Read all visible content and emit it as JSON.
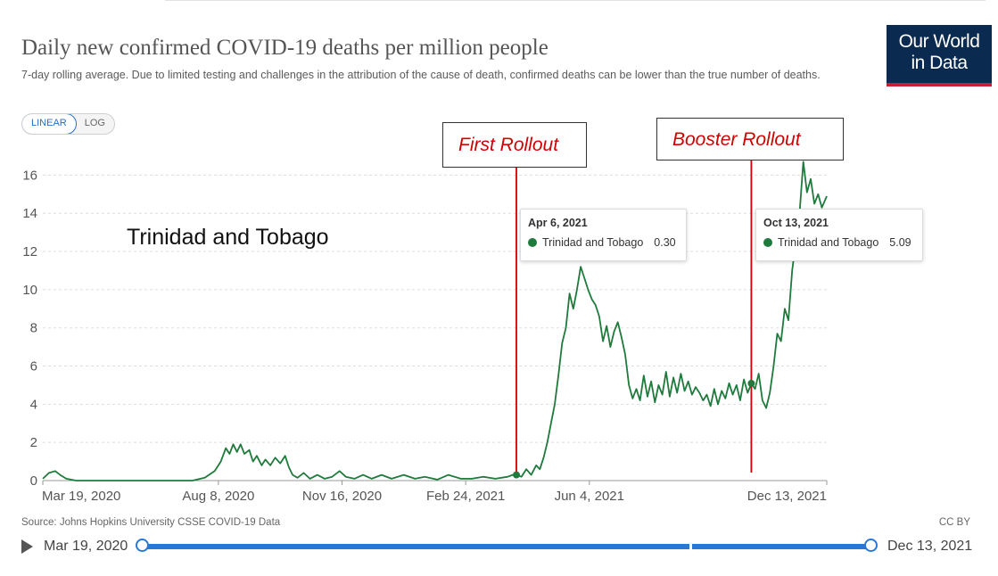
{
  "title": "Daily new confirmed COVID-19 deaths per million people",
  "subtitle": "7-day rolling average. Due to limited testing and challenges in the attribution of the cause of death, confirmed deaths can be lower than the true number of deaths.",
  "logo": {
    "line1": "Our World",
    "line2": "in Data"
  },
  "scale_toggle": {
    "linear": "LINEAR",
    "log": "LOG",
    "active": "LINEAR"
  },
  "annotations": {
    "first": "First Rollout",
    "booster": "Booster Rollout",
    "country": "Trinidad and Tobago"
  },
  "tooltips": [
    {
      "date": "Apr 6, 2021",
      "series": "Trinidad and Tobago",
      "value": "0.30"
    },
    {
      "date": "Oct 13, 2021",
      "series": "Trinidad and Tobago",
      "value": "5.09"
    }
  ],
  "source": "Source: Johns Hopkins University CSSE COVID-19 Data",
  "license": "CC BY",
  "timeline": {
    "start": "Mar 19, 2020",
    "end": "Dec 13, 2021"
  },
  "colors": {
    "series": "#1f7a3c",
    "marker": "#d00000",
    "accent": "#2a78d4"
  },
  "chart_data": {
    "type": "line",
    "title": "Daily new confirmed COVID-19 deaths per million people",
    "xlabel": "",
    "ylabel": "",
    "xlim": [
      "2020-03-19",
      "2021-12-13"
    ],
    "ylim": [
      0,
      17
    ],
    "yticks": [
      0,
      2,
      4,
      6,
      8,
      10,
      12,
      14,
      16
    ],
    "xticks": [
      "Mar 19, 2020",
      "Aug 8, 2020",
      "Nov 16, 2020",
      "Feb 24, 2021",
      "Jun 4, 2021",
      "Dec 13, 2021"
    ],
    "grid": "horizontal",
    "series": [
      {
        "name": "Trinidad and Tobago",
        "points": [
          [
            "2020-03-19",
            0.1
          ],
          [
            "2020-03-24",
            0.4
          ],
          [
            "2020-03-29",
            0.5
          ],
          [
            "2020-04-02",
            0.3
          ],
          [
            "2020-04-07",
            0.1
          ],
          [
            "2020-04-15",
            0
          ],
          [
            "2020-05-15",
            0
          ],
          [
            "2020-06-20",
            0
          ],
          [
            "2020-07-18",
            0
          ],
          [
            "2020-07-28",
            0.15
          ],
          [
            "2020-08-05",
            0.5
          ],
          [
            "2020-08-10",
            1.0
          ],
          [
            "2020-08-14",
            1.7
          ],
          [
            "2020-08-17",
            1.4
          ],
          [
            "2020-08-20",
            1.9
          ],
          [
            "2020-08-23",
            1.5
          ],
          [
            "2020-08-26",
            1.9
          ],
          [
            "2020-08-29",
            1.4
          ],
          [
            "2020-09-02",
            1.6
          ],
          [
            "2020-09-05",
            1.0
          ],
          [
            "2020-09-08",
            1.3
          ],
          [
            "2020-09-12",
            0.8
          ],
          [
            "2020-09-15",
            1.1
          ],
          [
            "2020-09-19",
            0.8
          ],
          [
            "2020-09-23",
            1.2
          ],
          [
            "2020-09-27",
            0.9
          ],
          [
            "2020-10-01",
            1.3
          ],
          [
            "2020-10-04",
            0.7
          ],
          [
            "2020-10-07",
            0.3
          ],
          [
            "2020-10-11",
            0.15
          ],
          [
            "2020-10-16",
            0.4
          ],
          [
            "2020-10-21",
            0.1
          ],
          [
            "2020-10-27",
            0.3
          ],
          [
            "2020-11-02",
            0.1
          ],
          [
            "2020-11-08",
            0.2
          ],
          [
            "2020-11-14",
            0.5
          ],
          [
            "2020-11-19",
            0.2
          ],
          [
            "2020-11-26",
            0.1
          ],
          [
            "2020-12-03",
            0.3
          ],
          [
            "2020-12-10",
            0.1
          ],
          [
            "2020-12-18",
            0.3
          ],
          [
            "2020-12-26",
            0.1
          ],
          [
            "2021-01-05",
            0.3
          ],
          [
            "2021-01-14",
            0.1
          ],
          [
            "2021-01-22",
            0.2
          ],
          [
            "2021-02-01",
            0.05
          ],
          [
            "2021-02-10",
            0.3
          ],
          [
            "2021-02-20",
            0.1
          ],
          [
            "2021-03-01",
            0.1
          ],
          [
            "2021-03-10",
            0.2
          ],
          [
            "2021-03-20",
            0.1
          ],
          [
            "2021-03-30",
            0.2
          ],
          [
            "2021-04-03",
            0.3
          ],
          [
            "2021-04-06",
            0.3
          ],
          [
            "2021-04-10",
            0.2
          ],
          [
            "2021-04-14",
            0.6
          ],
          [
            "2021-04-18",
            0.3
          ],
          [
            "2021-04-22",
            0.8
          ],
          [
            "2021-04-25",
            0.6
          ],
          [
            "2021-04-28",
            1.2
          ],
          [
            "2021-05-01",
            2.0
          ],
          [
            "2021-05-04",
            3.0
          ],
          [
            "2021-05-07",
            4.0
          ],
          [
            "2021-05-10",
            5.5
          ],
          [
            "2021-05-13",
            7.2
          ],
          [
            "2021-05-16",
            8.0
          ],
          [
            "2021-05-19",
            9.8
          ],
          [
            "2021-05-22",
            9.0
          ],
          [
            "2021-05-25",
            10.0
          ],
          [
            "2021-05-28",
            11.2
          ],
          [
            "2021-05-31",
            10.6
          ],
          [
            "2021-06-03",
            10.0
          ],
          [
            "2021-06-06",
            9.5
          ],
          [
            "2021-06-09",
            9.2
          ],
          [
            "2021-06-12",
            8.6
          ],
          [
            "2021-06-15",
            7.3
          ],
          [
            "2021-06-18",
            8.1
          ],
          [
            "2021-06-21",
            7.0
          ],
          [
            "2021-06-24",
            7.8
          ],
          [
            "2021-06-27",
            8.3
          ],
          [
            "2021-06-30",
            7.5
          ],
          [
            "2021-07-03",
            6.6
          ],
          [
            "2021-07-06",
            5.0
          ],
          [
            "2021-07-09",
            4.3
          ],
          [
            "2021-07-12",
            4.8
          ],
          [
            "2021-07-15",
            4.2
          ],
          [
            "2021-07-18",
            5.5
          ],
          [
            "2021-07-21",
            4.4
          ],
          [
            "2021-07-24",
            5.2
          ],
          [
            "2021-07-27",
            4.1
          ],
          [
            "2021-07-30",
            5.0
          ],
          [
            "2021-08-02",
            4.5
          ],
          [
            "2021-08-05",
            5.7
          ],
          [
            "2021-08-08",
            4.4
          ],
          [
            "2021-08-11",
            5.4
          ],
          [
            "2021-08-14",
            4.6
          ],
          [
            "2021-08-17",
            5.6
          ],
          [
            "2021-08-20",
            4.7
          ],
          [
            "2021-08-23",
            5.2
          ],
          [
            "2021-08-26",
            4.5
          ],
          [
            "2021-08-29",
            4.9
          ],
          [
            "2021-09-01",
            4.6
          ],
          [
            "2021-09-04",
            4.2
          ],
          [
            "2021-09-07",
            4.5
          ],
          [
            "2021-09-10",
            3.9
          ],
          [
            "2021-09-13",
            4.8
          ],
          [
            "2021-09-16",
            4.0
          ],
          [
            "2021-09-19",
            4.7
          ],
          [
            "2021-09-22",
            4.3
          ],
          [
            "2021-09-25",
            5.1
          ],
          [
            "2021-09-28",
            4.5
          ],
          [
            "2021-10-01",
            5.0
          ],
          [
            "2021-10-04",
            4.2
          ],
          [
            "2021-10-07",
            5.3
          ],
          [
            "2021-10-10",
            4.6
          ],
          [
            "2021-10-13",
            5.09
          ],
          [
            "2021-10-16",
            4.8
          ],
          [
            "2021-10-19",
            5.6
          ],
          [
            "2021-10-22",
            4.2
          ],
          [
            "2021-10-25",
            3.8
          ],
          [
            "2021-10-28",
            4.6
          ],
          [
            "2021-10-31",
            6.0
          ],
          [
            "2021-11-03",
            7.7
          ],
          [
            "2021-11-06",
            7.3
          ],
          [
            "2021-11-09",
            9.0
          ],
          [
            "2021-11-12",
            8.4
          ],
          [
            "2021-11-15",
            11.0
          ],
          [
            "2021-11-18",
            12.5
          ],
          [
            "2021-11-21",
            14.0
          ],
          [
            "2021-11-24",
            16.7
          ],
          [
            "2021-11-27",
            15.1
          ],
          [
            "2021-11-30",
            15.8
          ],
          [
            "2021-12-03",
            14.5
          ],
          [
            "2021-12-06",
            15.0
          ],
          [
            "2021-12-09",
            14.3
          ],
          [
            "2021-12-13",
            14.9
          ]
        ]
      }
    ],
    "vertical_markers": [
      {
        "label": "First Rollout",
        "x": "2021-04-06"
      },
      {
        "label": "Booster Rollout",
        "x": "2021-10-13"
      }
    ]
  }
}
